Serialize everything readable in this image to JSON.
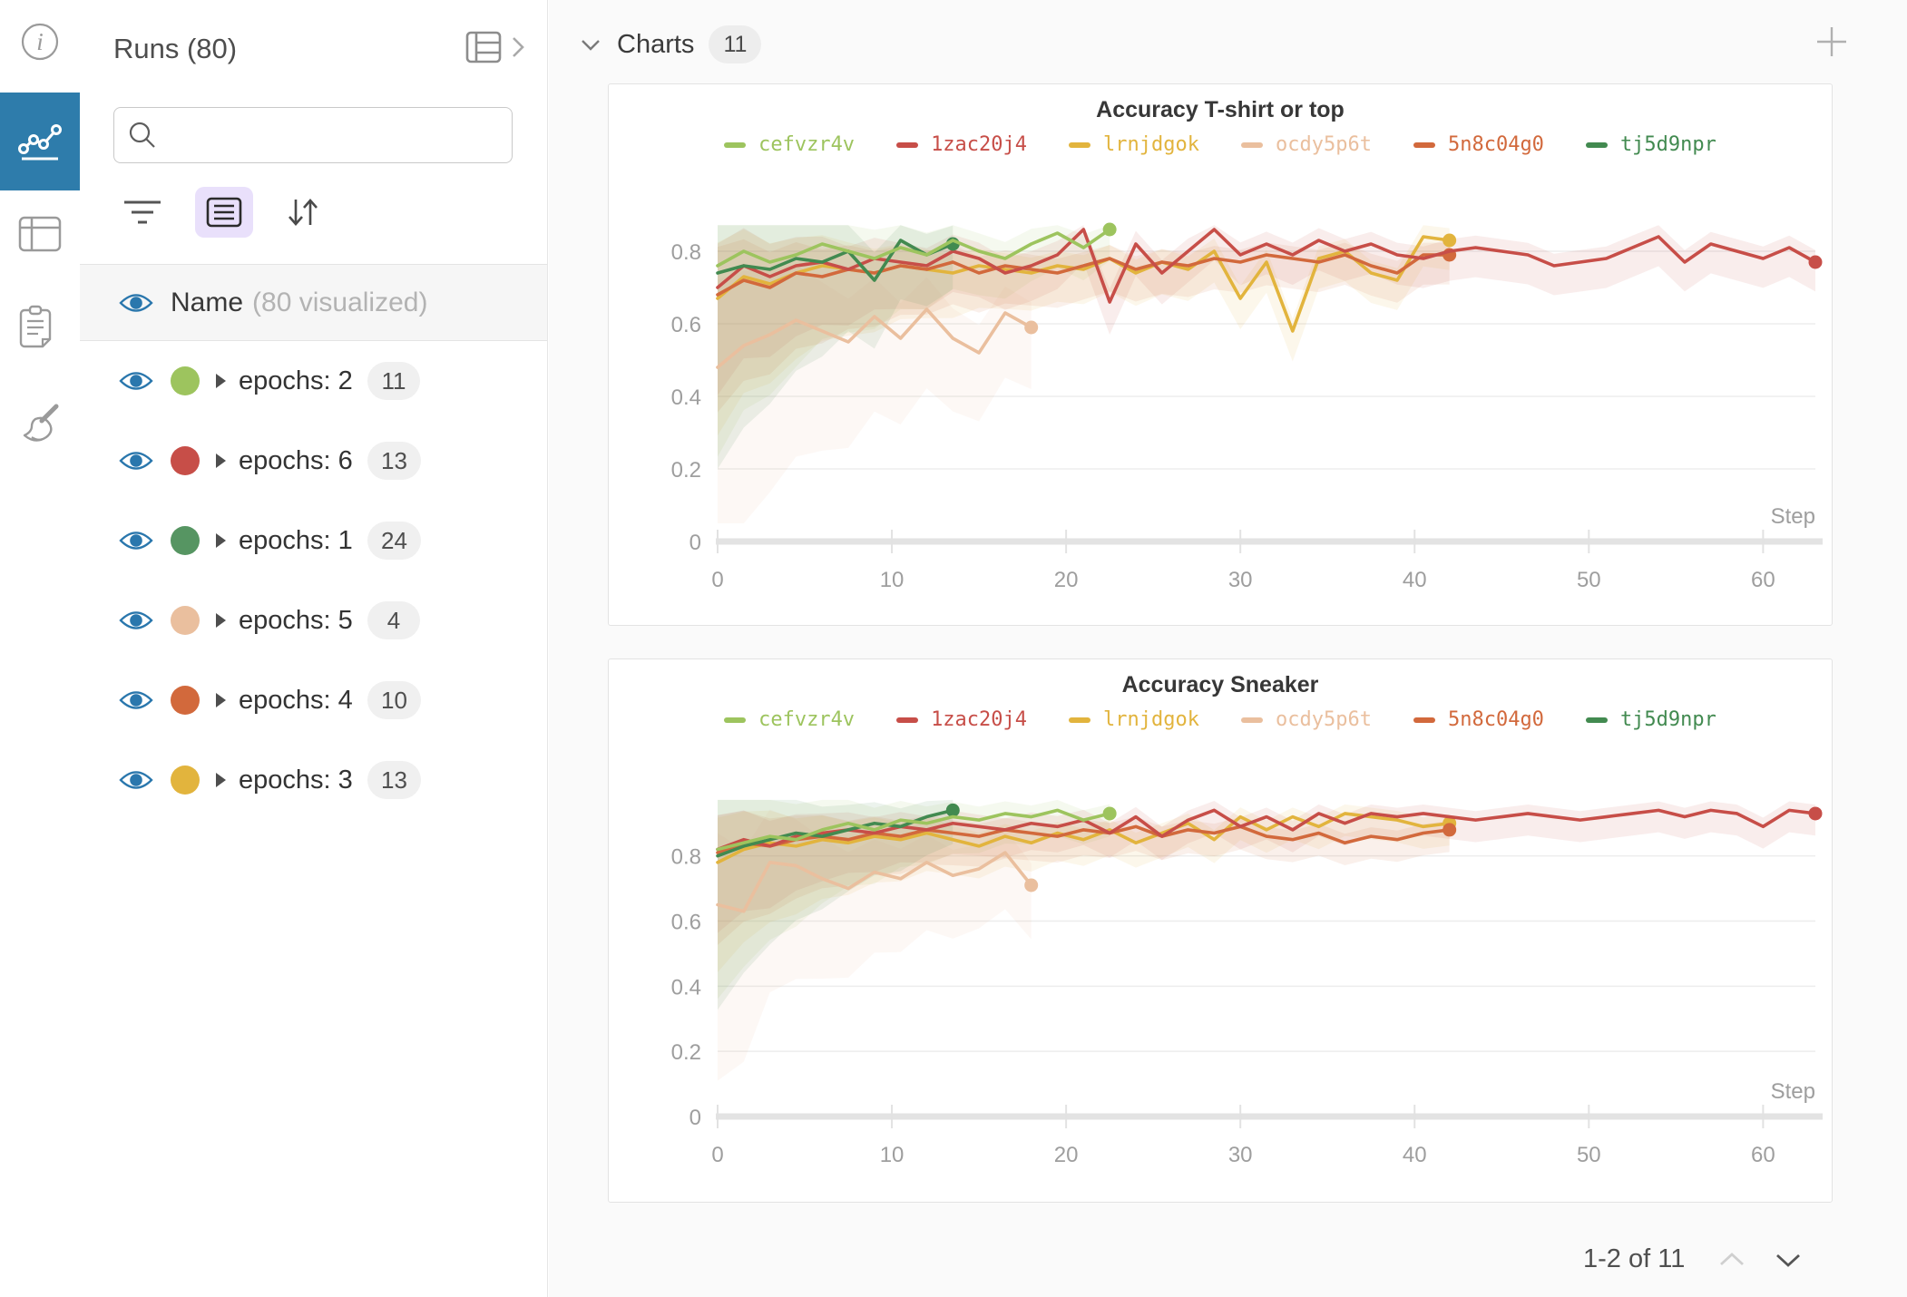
{
  "left_rail": {
    "items": [
      {
        "icon": "info-icon",
        "active": false
      },
      {
        "icon": "line-chart-icon",
        "active": true
      },
      {
        "icon": "table-icon",
        "active": false
      },
      {
        "icon": "clipboard-icon",
        "active": false
      },
      {
        "icon": "broom-icon",
        "active": false
      }
    ]
  },
  "sidebar": {
    "title": "Runs (80)",
    "search_placeholder": "",
    "search_value": "",
    "visualized_row": {
      "label": "Name",
      "sublabel": "(80 visualized)"
    },
    "groups": [
      {
        "label": "epochs: 2",
        "count": "11",
        "color": "#9dc45e"
      },
      {
        "label": "epochs: 6",
        "count": "13",
        "color": "#c74e48"
      },
      {
        "label": "epochs: 1",
        "count": "24",
        "color": "#569562"
      },
      {
        "label": "epochs: 5",
        "count": "4",
        "color": "#eabf9e"
      },
      {
        "label": "epochs: 4",
        "count": "10",
        "color": "#d2693c"
      },
      {
        "label": "epochs: 3",
        "count": "13",
        "color": "#e2b43d"
      }
    ]
  },
  "main": {
    "section_title": "Charts",
    "section_count": "11",
    "pagination_label": "1-2 of 11"
  },
  "chart_data": [
    {
      "type": "line",
      "title": "Accuracy T-shirt or top",
      "xlabel": "Step",
      "ylabel": "",
      "xlim": [
        0,
        63
      ],
      "ylim": [
        0,
        0.88
      ],
      "x_step": 1.5,
      "grid": true,
      "legend_position": "top",
      "x_tick_labels": [
        0,
        10,
        20,
        30,
        40,
        50,
        60
      ],
      "y_tick_labels": [
        "0.8",
        "0.6",
        "0.4",
        "0.2",
        "0"
      ],
      "series": [
        {
          "name": "cefvzr4v",
          "color": "#9dc45e",
          "z": 5,
          "band": [
            0.34,
            0.05
          ],
          "values": [
            0.76,
            0.8,
            0.77,
            0.79,
            0.82,
            0.8,
            0.78,
            0.81,
            0.79,
            0.83,
            0.8,
            0.78,
            0.82,
            0.85,
            0.81,
            0.86
          ]
        },
        {
          "name": "1zac20j4",
          "color": "#c74e48",
          "z": 3,
          "band": [
            0.16,
            0.06
          ],
          "values": [
            0.7,
            0.76,
            0.73,
            0.76,
            0.77,
            0.75,
            0.78,
            0.77,
            0.76,
            0.8,
            0.78,
            0.74,
            0.76,
            0.79,
            0.86,
            0.66,
            0.82,
            0.74,
            0.8,
            0.86,
            0.79,
            0.82,
            0.79,
            0.83,
            0.8,
            0.82,
            0.79,
            0.78,
            0.8,
            0.81,
            0.8,
            0.79,
            0.76,
            0.77,
            0.78,
            0.81,
            0.84,
            0.77,
            0.82,
            0.8,
            0.78,
            0.81,
            0.77
          ]
        },
        {
          "name": "lrnjdgok",
          "color": "#e2b43d",
          "z": 1,
          "band": [
            0.22,
            0.06
          ],
          "values": [
            0.67,
            0.73,
            0.71,
            0.74,
            0.76,
            0.75,
            0.74,
            0.76,
            0.75,
            0.74,
            0.76,
            0.75,
            0.74,
            0.76,
            0.75,
            0.78,
            0.74,
            0.77,
            0.75,
            0.8,
            0.67,
            0.77,
            0.58,
            0.78,
            0.8,
            0.74,
            0.72,
            0.84,
            0.83
          ]
        },
        {
          "name": "ocdy5p6t",
          "color": "#eabf9e",
          "z": 0,
          "band": [
            0.34,
            0.1
          ],
          "values": [
            0.48,
            0.54,
            0.57,
            0.61,
            0.58,
            0.55,
            0.62,
            0.56,
            0.64,
            0.56,
            0.52,
            0.63,
            0.59
          ]
        },
        {
          "name": "5n8c04g0",
          "color": "#d2693c",
          "z": 2,
          "band": [
            0.18,
            0.06
          ],
          "values": [
            0.68,
            0.72,
            0.7,
            0.74,
            0.73,
            0.75,
            0.74,
            0.76,
            0.75,
            0.77,
            0.74,
            0.76,
            0.75,
            0.74,
            0.76,
            0.78,
            0.75,
            0.77,
            0.76,
            0.78,
            0.77,
            0.79,
            0.78,
            0.77,
            0.79,
            0.76,
            0.74,
            0.79,
            0.79
          ]
        },
        {
          "name": "tj5d9npr",
          "color": "#428a50",
          "z": 4,
          "band": [
            0.36,
            0.04
          ],
          "values": [
            0.74,
            0.76,
            0.75,
            0.78,
            0.77,
            0.8,
            0.72,
            0.83,
            0.79,
            0.82
          ]
        }
      ]
    },
    {
      "type": "line",
      "title": "Accuracy Sneaker",
      "xlabel": "Step",
      "ylabel": "",
      "xlim": [
        0,
        63
      ],
      "ylim": [
        0,
        0.98
      ],
      "x_step": 1.5,
      "grid": true,
      "legend_position": "top",
      "x_tick_labels": [
        0,
        10,
        20,
        30,
        40,
        50,
        60
      ],
      "y_tick_labels": [
        "0.8",
        "0.6",
        "0.4",
        "0.2",
        "0"
      ],
      "series": [
        {
          "name": "cefvzr4v",
          "color": "#9dc45e",
          "z": 5,
          "band": [
            0.3,
            0.04
          ],
          "values": [
            0.82,
            0.84,
            0.86,
            0.85,
            0.88,
            0.9,
            0.88,
            0.91,
            0.9,
            0.92,
            0.91,
            0.93,
            0.92,
            0.94,
            0.91,
            0.93
          ]
        },
        {
          "name": "1zac20j4",
          "color": "#c74e48",
          "z": 3,
          "band": [
            0.14,
            0.05
          ],
          "values": [
            0.82,
            0.85,
            0.83,
            0.86,
            0.87,
            0.88,
            0.87,
            0.89,
            0.88,
            0.9,
            0.89,
            0.88,
            0.9,
            0.89,
            0.91,
            0.87,
            0.92,
            0.86,
            0.91,
            0.94,
            0.89,
            0.92,
            0.88,
            0.93,
            0.9,
            0.93,
            0.92,
            0.93,
            0.92,
            0.91,
            0.92,
            0.93,
            0.92,
            0.91,
            0.92,
            0.93,
            0.94,
            0.92,
            0.94,
            0.93,
            0.89,
            0.94,
            0.93
          ]
        },
        {
          "name": "lrnjdgok",
          "color": "#e2b43d",
          "z": 1,
          "band": [
            0.2,
            0.05
          ],
          "values": [
            0.78,
            0.82,
            0.84,
            0.83,
            0.85,
            0.84,
            0.86,
            0.85,
            0.87,
            0.85,
            0.83,
            0.86,
            0.84,
            0.87,
            0.85,
            0.88,
            0.84,
            0.87,
            0.9,
            0.85,
            0.92,
            0.88,
            0.92,
            0.89,
            0.93,
            0.92,
            0.91,
            0.89,
            0.9
          ]
        },
        {
          "name": "ocdy5p6t",
          "color": "#eabf9e",
          "z": 0,
          "band": [
            0.3,
            0.1
          ],
          "values": [
            0.65,
            0.63,
            0.78,
            0.77,
            0.73,
            0.7,
            0.75,
            0.73,
            0.78,
            0.74,
            0.76,
            0.81,
            0.71
          ]
        },
        {
          "name": "5n8c04g0",
          "color": "#d2693c",
          "z": 2,
          "band": [
            0.16,
            0.05
          ],
          "values": [
            0.81,
            0.84,
            0.83,
            0.85,
            0.86,
            0.85,
            0.87,
            0.86,
            0.88,
            0.87,
            0.86,
            0.88,
            0.87,
            0.86,
            0.88,
            0.87,
            0.89,
            0.86,
            0.88,
            0.87,
            0.89,
            0.86,
            0.85,
            0.87,
            0.84,
            0.86,
            0.85,
            0.87,
            0.88
          ]
        },
        {
          "name": "tj5d9npr",
          "color": "#428a50",
          "z": 4,
          "band": [
            0.32,
            0.03
          ],
          "values": [
            0.8,
            0.83,
            0.85,
            0.87,
            0.86,
            0.88,
            0.9,
            0.89,
            0.92,
            0.94
          ]
        }
      ]
    }
  ]
}
